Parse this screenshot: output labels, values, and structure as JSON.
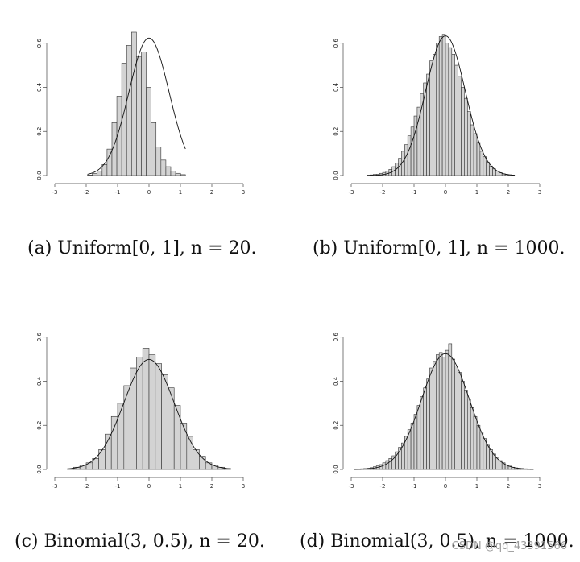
{
  "colors": {
    "bar_fill": "#d3d3d3",
    "bar_stroke": "#333333",
    "curve": "#111111",
    "axis": "#444444"
  },
  "captions": [
    "(a) Uniform[0, 1], n = 20.",
    "(b) Uniform[0, 1], n = 1000.",
    "(c) Binomial(3, 0.5), n = 20.",
    "(d) Binomial(3, 0.5), n = 1000."
  ],
  "watermark": "CSDN @qq_43391566",
  "chart_data": [
    {
      "type": "bar",
      "subtype": "histogram-with-density",
      "xlim": [
        -3,
        3
      ],
      "ylim": [
        0,
        0.65
      ],
      "x_ticks": [
        "-3",
        "-2",
        "-1",
        "0",
        "1",
        "2",
        "3"
      ],
      "y_ticks": [
        "0.0",
        "0.2",
        "0.4",
        "0.6"
      ],
      "bin_width": 0.156,
      "bins_start": -1.96,
      "values": [
        0.002,
        0.01,
        0.02,
        0.05,
        0.12,
        0.24,
        0.36,
        0.51,
        0.59,
        0.65,
        0.54,
        0.56,
        0.4,
        0.24,
        0.13,
        0.07,
        0.04,
        0.02,
        0.01,
        0.004
      ],
      "curve": {
        "type": "normal-density",
        "mean": 0,
        "sd": 0.64
      }
    },
    {
      "type": "bar",
      "subtype": "histogram-with-density",
      "xlim": [
        -3,
        3
      ],
      "ylim": [
        0,
        0.65
      ],
      "x_ticks": [
        "-3",
        "-2",
        "-1",
        "0",
        "1",
        "2",
        "3"
      ],
      "y_ticks": [
        "0.0",
        "0.2",
        "0.4",
        "0.6"
      ],
      "bin_width": 0.1,
      "bins_start": -2.5,
      "values": [
        0.002,
        0.003,
        0.005,
        0.006,
        0.01,
        0.014,
        0.02,
        0.028,
        0.04,
        0.056,
        0.078,
        0.11,
        0.14,
        0.18,
        0.22,
        0.27,
        0.31,
        0.37,
        0.42,
        0.46,
        0.52,
        0.55,
        0.6,
        0.63,
        0.64,
        0.6,
        0.58,
        0.55,
        0.5,
        0.45,
        0.4,
        0.35,
        0.29,
        0.23,
        0.19,
        0.15,
        0.11,
        0.085,
        0.06,
        0.043,
        0.03,
        0.02,
        0.013,
        0.008,
        0.005,
        0.003,
        0.002
      ],
      "curve": {
        "type": "normal-density",
        "mean": 0,
        "sd": 0.63
      }
    },
    {
      "type": "bar",
      "subtype": "histogram-with-density",
      "xlim": [
        -3,
        3
      ],
      "ylim": [
        0,
        0.65
      ],
      "x_ticks": [
        "-3",
        "-2",
        "-1",
        "0",
        "1",
        "2",
        "3"
      ],
      "y_ticks": [
        "0.0",
        "0.2",
        "0.4",
        "0.6"
      ],
      "bin_width": 0.2,
      "bins_start": -2.6,
      "values": [
        0.003,
        0.01,
        0.02,
        0.03,
        0.05,
        0.09,
        0.16,
        0.24,
        0.3,
        0.38,
        0.46,
        0.51,
        0.55,
        0.52,
        0.48,
        0.43,
        0.37,
        0.29,
        0.21,
        0.15,
        0.09,
        0.06,
        0.03,
        0.02,
        0.01,
        0.004
      ],
      "curve": {
        "type": "normal-density",
        "mean": 0,
        "sd": 0.8
      }
    },
    {
      "type": "bar",
      "subtype": "histogram-with-density",
      "xlim": [
        -3,
        3
      ],
      "ylim": [
        0,
        0.65
      ],
      "x_ticks": [
        "-3",
        "-2",
        "-1",
        "0",
        "1",
        "2",
        "3"
      ],
      "y_ticks": [
        "0.0",
        "0.2",
        "0.4",
        "0.6"
      ],
      "bin_width": 0.1,
      "bins_start": -2.9,
      "values": [
        0.002,
        0.002,
        0.003,
        0.004,
        0.006,
        0.008,
        0.012,
        0.016,
        0.022,
        0.03,
        0.04,
        0.05,
        0.062,
        0.08,
        0.1,
        0.12,
        0.15,
        0.18,
        0.21,
        0.25,
        0.29,
        0.33,
        0.37,
        0.41,
        0.46,
        0.49,
        0.52,
        0.53,
        0.51,
        0.54,
        0.57,
        0.5,
        0.47,
        0.44,
        0.4,
        0.36,
        0.32,
        0.28,
        0.24,
        0.2,
        0.17,
        0.14,
        0.11,
        0.09,
        0.07,
        0.055,
        0.04,
        0.03,
        0.02,
        0.015,
        0.01,
        0.007,
        0.005,
        0.004,
        0.003,
        0.002,
        0.002
      ],
      "curve": {
        "type": "normal-density",
        "mean": 0,
        "sd": 0.76
      }
    }
  ]
}
